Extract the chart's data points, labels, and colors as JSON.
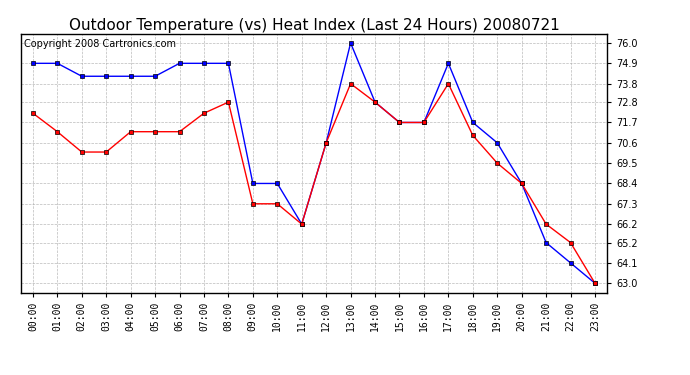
{
  "title": "Outdoor Temperature (vs) Heat Index (Last 24 Hours) 20080721",
  "copyright": "Copyright 2008 Cartronics.com",
  "hours": [
    "00:00",
    "01:00",
    "02:00",
    "03:00",
    "04:00",
    "05:00",
    "06:00",
    "07:00",
    "08:00",
    "09:00",
    "10:00",
    "11:00",
    "12:00",
    "13:00",
    "14:00",
    "15:00",
    "16:00",
    "17:00",
    "18:00",
    "19:00",
    "20:00",
    "21:00",
    "22:00",
    "23:00"
  ],
  "blue_temp": [
    74.9,
    74.9,
    74.2,
    74.2,
    74.2,
    74.2,
    74.9,
    74.9,
    74.9,
    68.4,
    68.4,
    66.2,
    70.6,
    76.0,
    72.8,
    71.7,
    71.7,
    74.9,
    71.7,
    70.6,
    68.4,
    65.2,
    64.1,
    63.0
  ],
  "red_heat": [
    72.2,
    71.2,
    70.1,
    70.1,
    71.2,
    71.2,
    71.2,
    72.2,
    72.8,
    67.3,
    67.3,
    66.2,
    70.6,
    73.8,
    72.8,
    71.7,
    71.7,
    73.8,
    71.0,
    69.5,
    68.4,
    66.2,
    65.2,
    63.0
  ],
  "ylim_min": 62.5,
  "ylim_max": 76.5,
  "yticks": [
    63.0,
    64.1,
    65.2,
    66.2,
    67.3,
    68.4,
    69.5,
    70.6,
    71.7,
    72.8,
    73.8,
    74.9,
    76.0
  ],
  "blue_color": "#0000FF",
  "red_color": "#FF0000",
  "bg_color": "#FFFFFF",
  "plot_bg_color": "#FFFFFF",
  "grid_color": "#AAAAAA",
  "title_fontsize": 11,
  "copyright_fontsize": 7,
  "tick_fontsize": 7,
  "ytick_fontsize": 7
}
